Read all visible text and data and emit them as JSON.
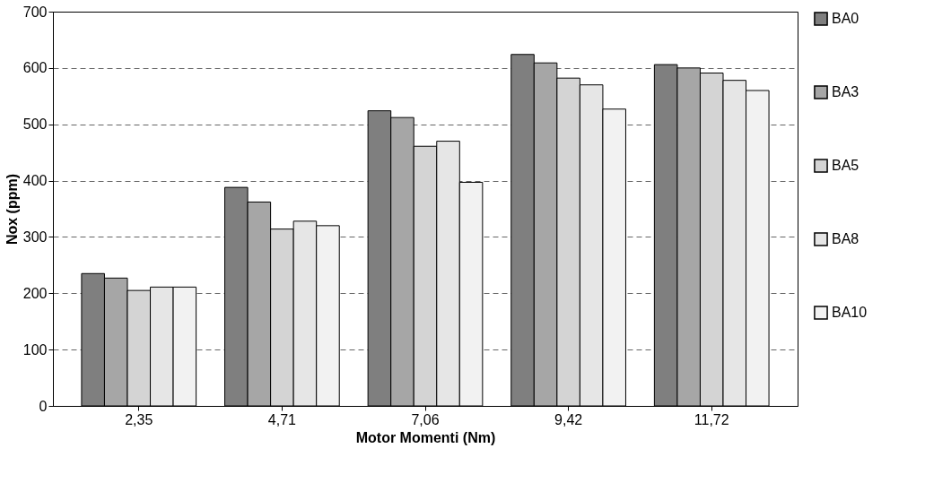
{
  "chart_data": {
    "type": "bar",
    "xlabel": "Motor Momenti (Nm)",
    "ylabel": "Nox (ppm)",
    "categories": [
      "2,35",
      "4,71",
      "7,06",
      "9,42",
      "11,72"
    ],
    "series": [
      {
        "name": "BA0",
        "color": "#7f7f7f",
        "values": [
          235,
          388,
          524,
          624,
          606
        ]
      },
      {
        "name": "BA3",
        "color": "#a6a6a6",
        "values": [
          227,
          362,
          512,
          609,
          600
        ]
      },
      {
        "name": "BA5",
        "color": "#d4d4d4",
        "values": [
          205,
          314,
          461,
          582,
          591
        ]
      },
      {
        "name": "BA8",
        "color": "#e6e6e6",
        "values": [
          211,
          328,
          470,
          570,
          578
        ]
      },
      {
        "name": "BA10",
        "color": "#f2f2f2",
        "values": [
          211,
          320,
          397,
          527,
          560
        ]
      }
    ],
    "ylim": [
      0,
      700
    ],
    "yticks": [
      0,
      100,
      200,
      300,
      400,
      500,
      600,
      700
    ],
    "grid": "y",
    "legend": "right"
  }
}
